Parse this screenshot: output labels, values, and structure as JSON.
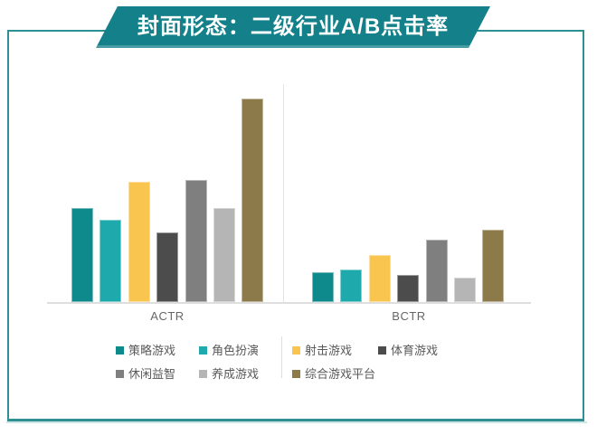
{
  "banner": {
    "title": "封面形态：二级行业A/B点击率",
    "bg_color": "#14808A",
    "text_color": "#ffffff"
  },
  "frame": {
    "border_color": "#2E9093",
    "shadow_color": "#93C6C8"
  },
  "chart_data": {
    "type": "bar",
    "title": "封面形态：二级行业A/B点击率",
    "categories": [
      "ACTR",
      "BCTR"
    ],
    "series": [
      {
        "name": "策略游戏",
        "color": "#0E898C",
        "values": [
          104,
          33
        ]
      },
      {
        "name": "角色扮演",
        "color": "#1EAAAD",
        "values": [
          91,
          36
        ]
      },
      {
        "name": "射击游戏",
        "color": "#F9C54F",
        "values": [
          133,
          52
        ]
      },
      {
        "name": "体育游戏",
        "color": "#4C4C4C",
        "values": [
          77,
          30
        ]
      },
      {
        "name": "休闲益智",
        "color": "#7F7F7F",
        "values": [
          135,
          69
        ]
      },
      {
        "name": "养成游戏",
        "color": "#B5B5B5",
        "values": [
          104,
          27
        ]
      },
      {
        "name": "综合游戏平台",
        "color": "#8D7A4B",
        "values": [
          225,
          80
        ]
      }
    ],
    "value_unit": "relative bar height in px (chart shows no y-axis tick labels)",
    "ylim": [
      0,
      242
    ],
    "grid": "off",
    "legend_position": "bottom",
    "axis_color": "#DEDEDE",
    "label_color": "#666666",
    "legend_text_color": "#595959"
  }
}
